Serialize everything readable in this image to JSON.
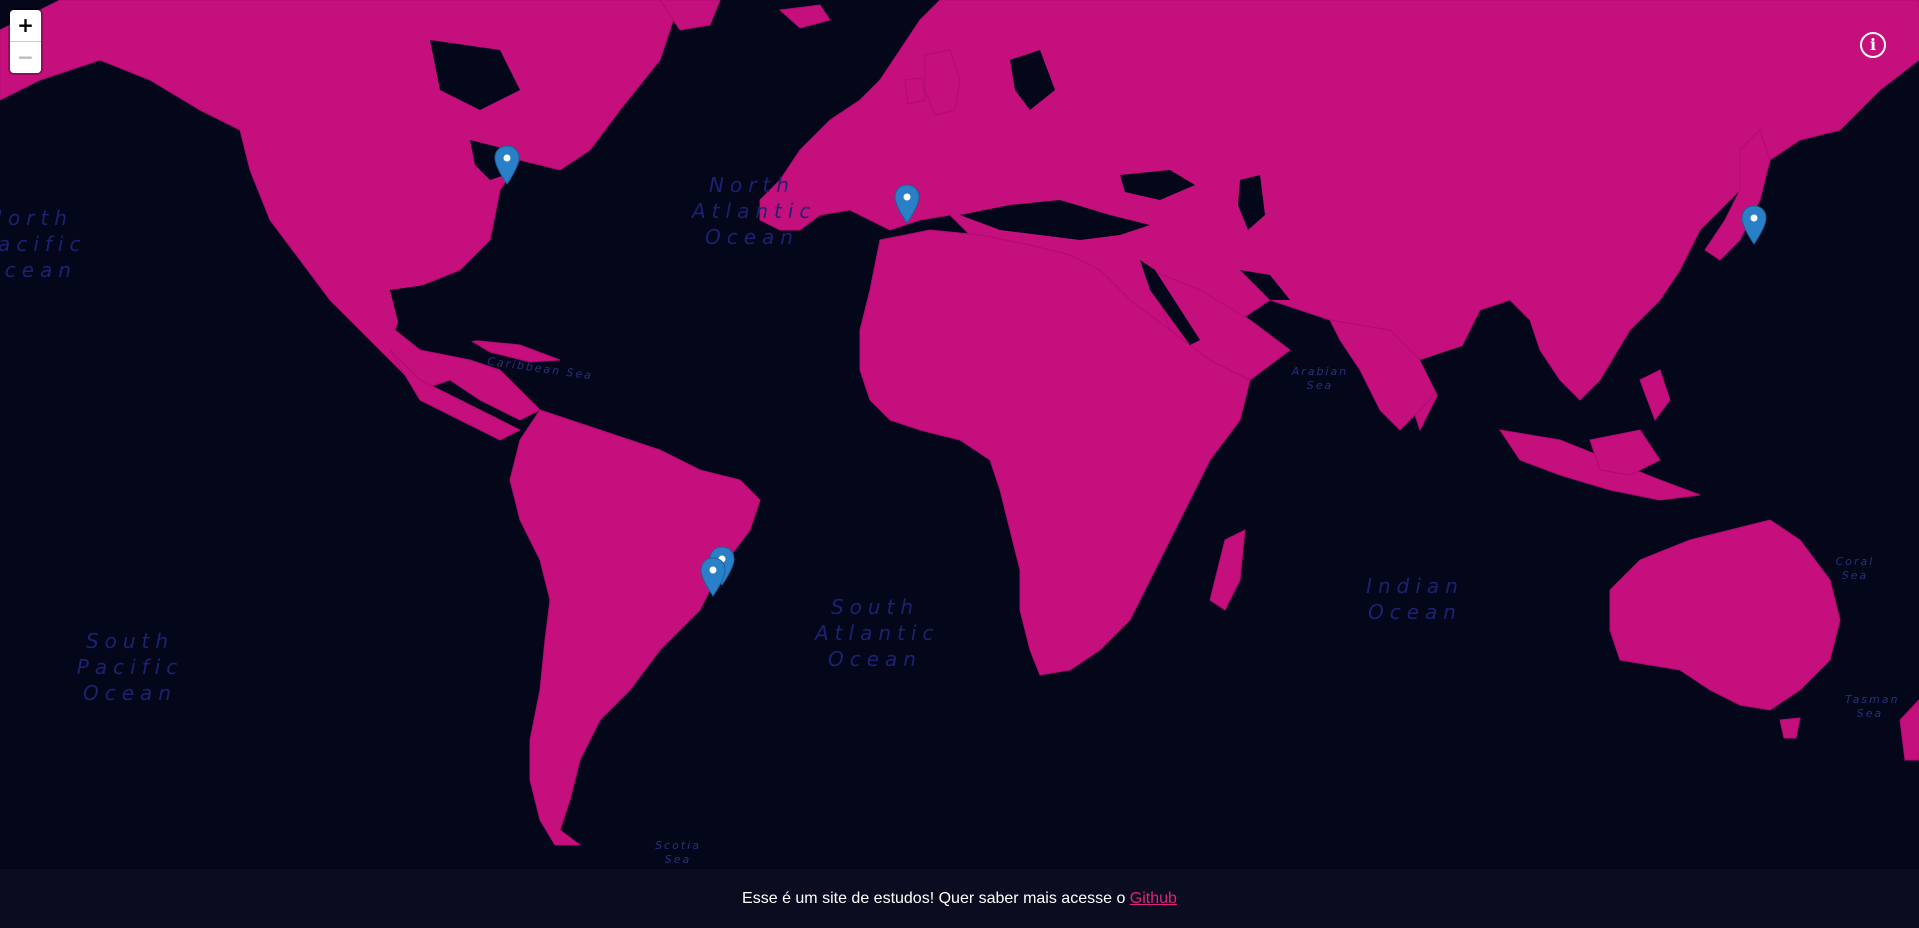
{
  "map": {
    "land_color": "#c40f7d",
    "water_color": "#04061a",
    "label_color": "#1c2272",
    "ocean_labels": [
      {
        "id": "north-pacific",
        "text": "North\nPacific\nOcean"
      },
      {
        "id": "north-atlantic",
        "text": "North\nAtlantic\nOcean"
      },
      {
        "id": "south-atlantic",
        "text": "South\nAtlantic\nOcean"
      },
      {
        "id": "south-pacific",
        "text": "South\nPacific\nOcean"
      },
      {
        "id": "indian",
        "text": "Indian\nOcean"
      }
    ],
    "sea_labels": [
      {
        "id": "caribbean",
        "text": "Caribbean Sea"
      },
      {
        "id": "arabian",
        "text": "Arabian\nSea"
      },
      {
        "id": "coral",
        "text": "Coral\nSea"
      },
      {
        "id": "tasman",
        "text": "Tasman\nSea"
      },
      {
        "id": "scotia",
        "text": "Scotia\nSea"
      }
    ],
    "markers": [
      {
        "id": "great-lakes",
        "color": "#2a80c8"
      },
      {
        "id": "portugal",
        "color": "#2a80c8"
      },
      {
        "id": "japan",
        "color": "#2a80c8"
      },
      {
        "id": "brazil-1",
        "color": "#2a80c8"
      },
      {
        "id": "brazil-2",
        "color": "#2a80c8"
      }
    ]
  },
  "controls": {
    "zoom_in_label": "+",
    "zoom_out_label": "−",
    "info_label": "i"
  },
  "footer": {
    "text": "Esse é um site de estudos! Quer saber mais acesse o ",
    "link_text": "Github"
  }
}
